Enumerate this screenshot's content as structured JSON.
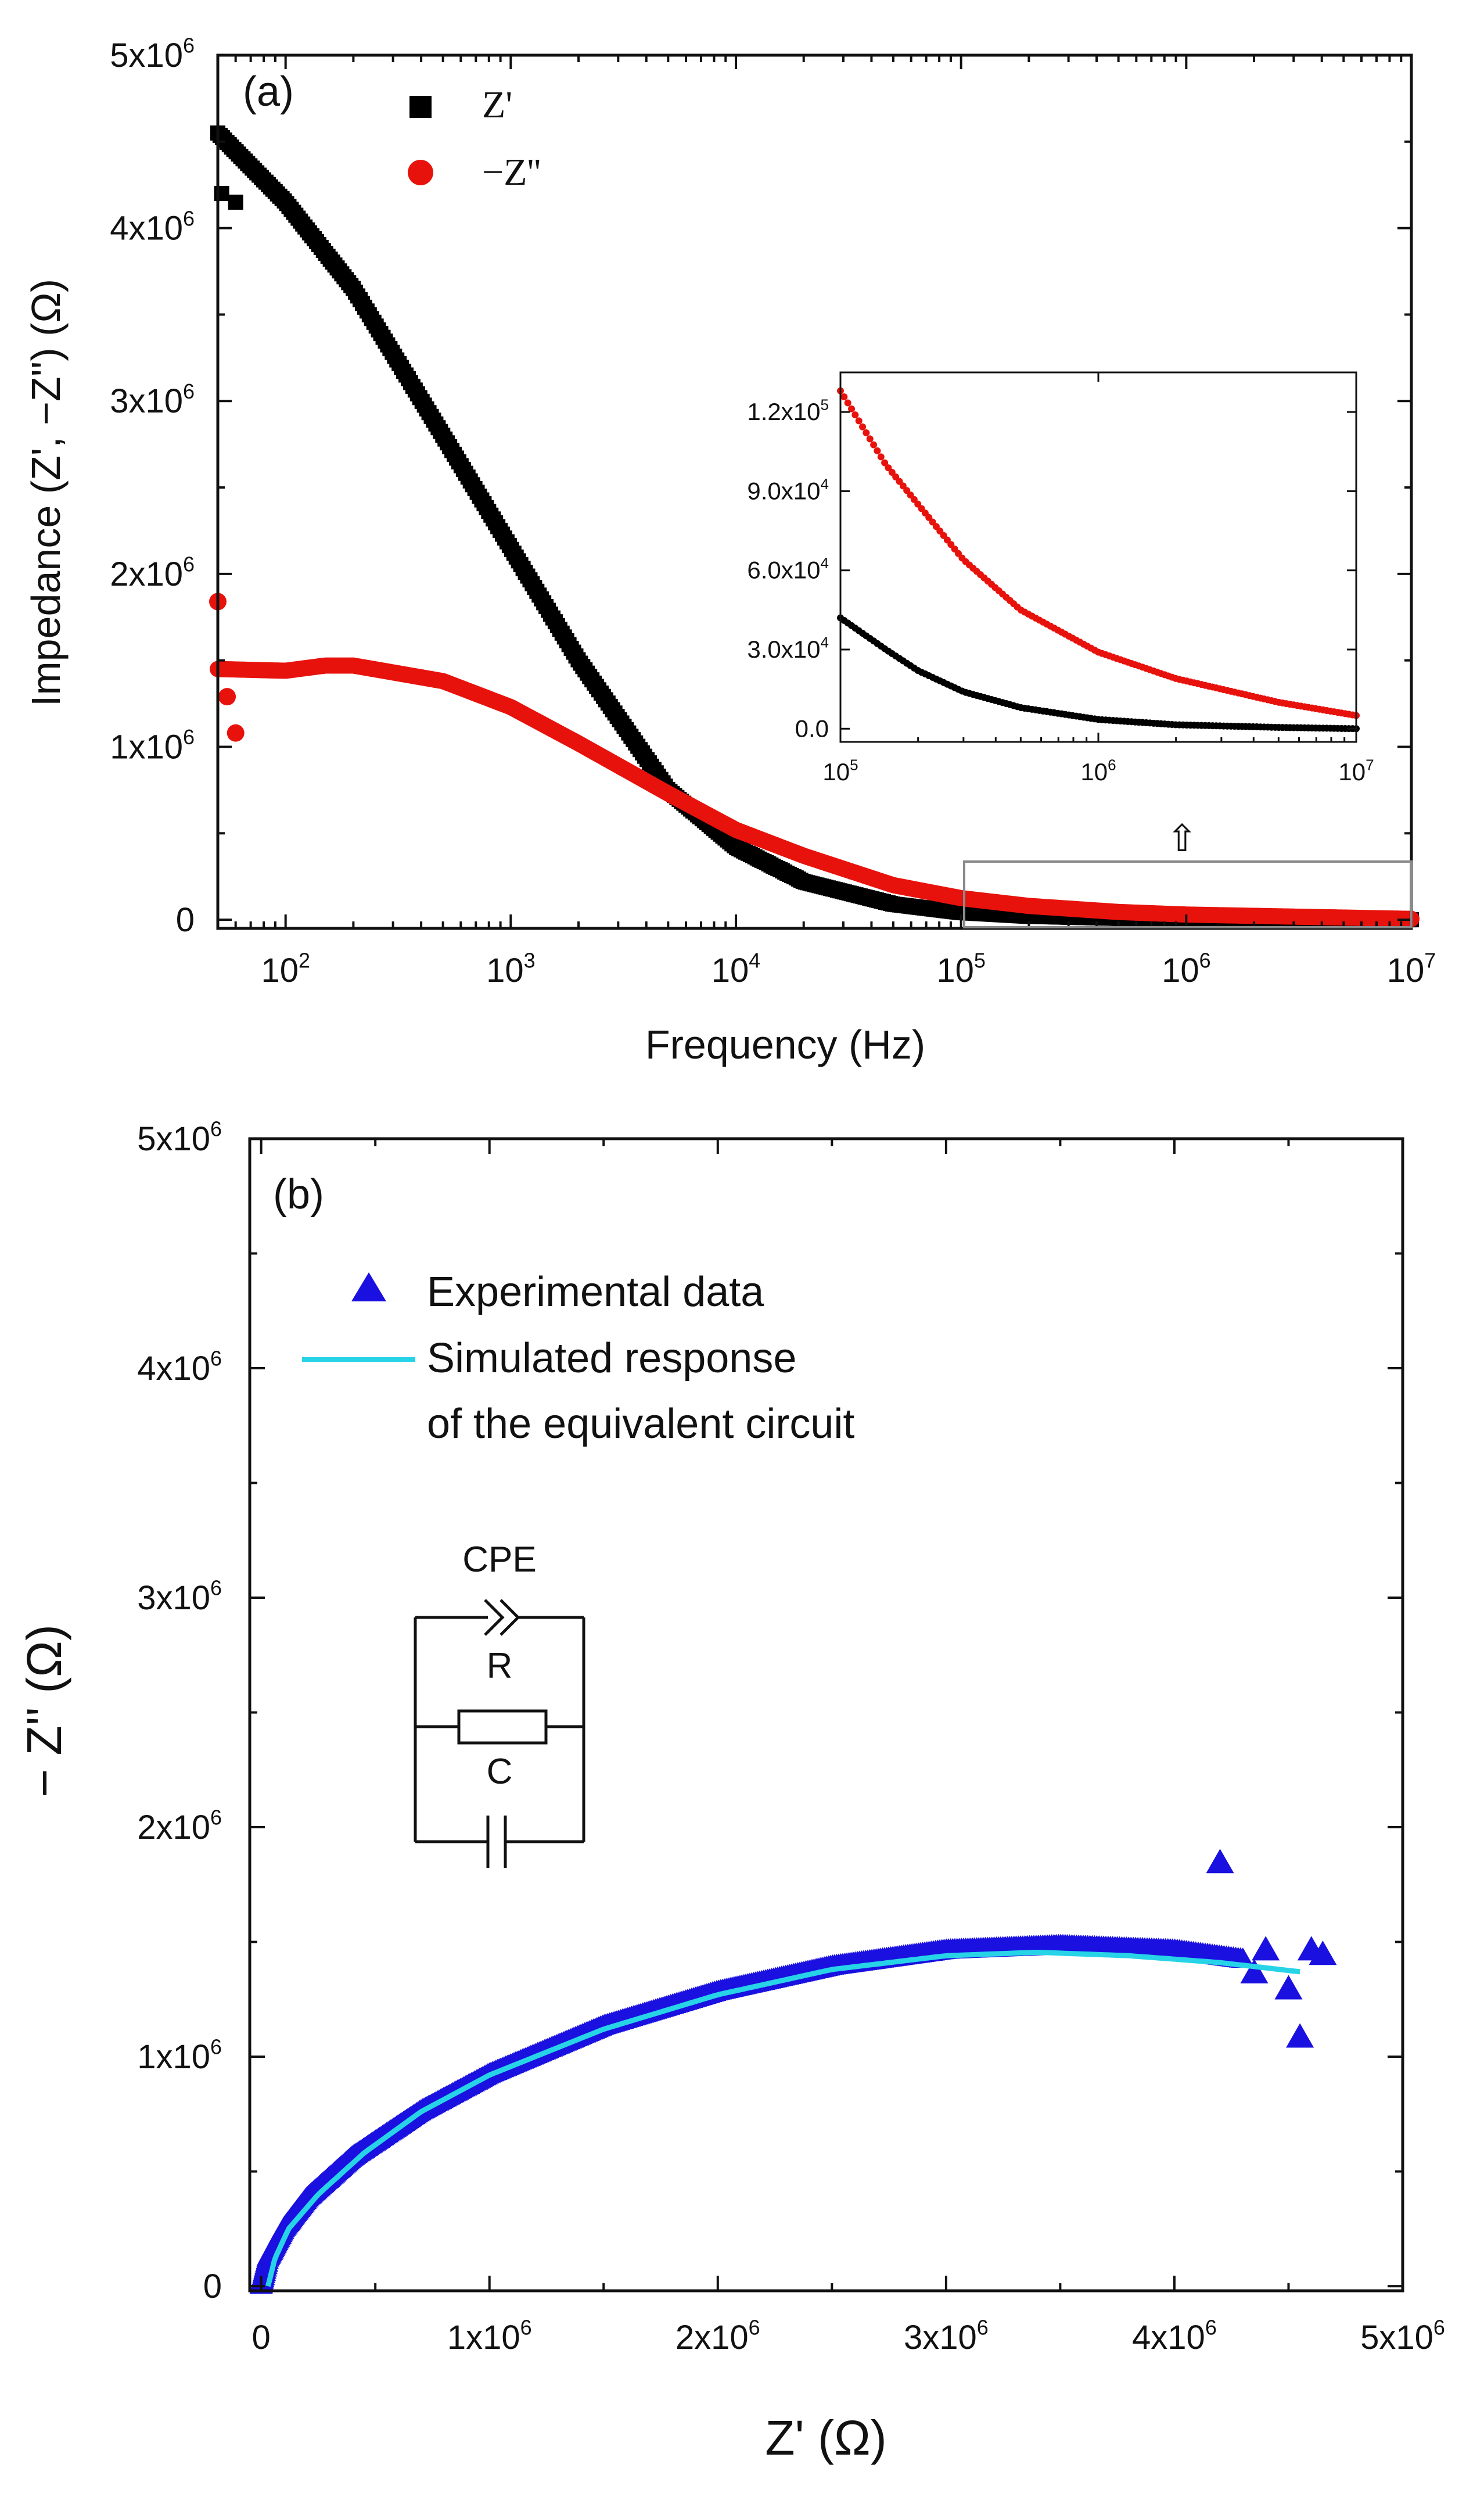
{
  "chart_data": [
    {
      "panel": "a",
      "panel_label": "(a)",
      "type": "scatter",
      "title": "",
      "xlabel": "Frequency (Hz)",
      "ylabel": "Impedance (Z', −Z'') (Ω)",
      "xscale": "log",
      "xlim": [
        50,
        10000000
      ],
      "ylim": [
        -50000,
        5000000
      ],
      "xticks": [
        {
          "value": 100,
          "base": "10",
          "exp": "2"
        },
        {
          "value": 1000,
          "base": "10",
          "exp": "3"
        },
        {
          "value": 10000,
          "base": "10",
          "exp": "4"
        },
        {
          "value": 100000,
          "base": "10",
          "exp": "5"
        },
        {
          "value": 1000000,
          "base": "10",
          "exp": "6"
        },
        {
          "value": 10000000,
          "base": "10",
          "exp": "7"
        }
      ],
      "yticks": [
        {
          "value": 0,
          "mant": "0",
          "exp": ""
        },
        {
          "value": 1000000,
          "mant": "1x10",
          "exp": "6"
        },
        {
          "value": 2000000,
          "mant": "2x10",
          "exp": "6"
        },
        {
          "value": 3000000,
          "mant": "3x10",
          "exp": "6"
        },
        {
          "value": 4000000,
          "mant": "4x10",
          "exp": "6"
        },
        {
          "value": 5000000,
          "mant": "5x10",
          "exp": "6"
        }
      ],
      "legend_position": "top-left",
      "series": [
        {
          "name": "Z'",
          "color": "#000000",
          "marker": "square",
          "x": [
            50,
            100,
            200,
            500,
            1000,
            2000,
            5000,
            10000,
            20000,
            50000,
            100000,
            200000,
            500000,
            1000000,
            10000000
          ],
          "y": [
            4550000,
            4150000,
            3650000,
            2800000,
            2150000,
            1500000,
            750000,
            420000,
            220000,
            90000,
            42000,
            20000,
            8000,
            3000,
            0
          ]
        },
        {
          "name": "−Z''",
          "color": "#e8120c",
          "marker": "circle",
          "x": [
            50,
            100,
            150,
            200,
            500,
            1000,
            2000,
            5000,
            10000,
            20000,
            50000,
            100000,
            200000,
            500000,
            1000000,
            10000000
          ],
          "y": [
            1450000,
            1440000,
            1470000,
            1470000,
            1380000,
            1230000,
            1020000,
            730000,
            520000,
            370000,
            200000,
            125000,
            80000,
            45000,
            30000,
            5000
          ]
        }
      ],
      "outliers": {
        "Z'": {
          "x": [
            52,
            60
          ],
          "y": [
            4200000,
            4150000
          ]
        },
        "−Z''": {
          "x": [
            50,
            55,
            60
          ],
          "y": [
            1840000,
            1290000,
            1080000
          ]
        }
      },
      "zoom_region": {
        "x": [
          100000,
          10000000
        ],
        "y": [
          -30000,
          300000
        ]
      },
      "zoom_arrow": "⇧",
      "inset": {
        "xscale": "log",
        "xlim": [
          100000,
          10000000
        ],
        "ylim": [
          -5000,
          135000
        ],
        "xticks": [
          {
            "value": 100000,
            "base": "10",
            "exp": "5"
          },
          {
            "value": 1000000,
            "base": "10",
            "exp": "6"
          },
          {
            "value": 10000000,
            "base": "10",
            "exp": "7"
          }
        ],
        "yticks": [
          {
            "value": 0,
            "mant": "0.0",
            "exp": ""
          },
          {
            "value": 30000,
            "mant": "3.0x10",
            "exp": "4"
          },
          {
            "value": 60000,
            "mant": "6.0x10",
            "exp": "4"
          },
          {
            "value": 90000,
            "mant": "9.0x10",
            "exp": "4"
          },
          {
            "value": 120000,
            "mant": "1.2x10",
            "exp": "5"
          }
        ],
        "series": [
          {
            "name": "Z'",
            "color": "#000000",
            "x": [
              100000,
              150000,
              200000,
              300000,
              500000,
              1000000,
              2000000,
              5000000,
              10000000
            ],
            "y": [
              42000,
              30000,
              22000,
              14000,
              8000,
              3500,
              1500,
              500,
              0
            ]
          },
          {
            "name": "−Z''",
            "color": "#e8120c",
            "x": [
              100000,
              150000,
              200000,
              300000,
              500000,
              1000000,
              2000000,
              5000000,
              10000000
            ],
            "y": [
              128000,
              100000,
              85000,
              64000,
              45000,
              29000,
              19000,
              10000,
              5000
            ]
          }
        ]
      }
    },
    {
      "panel": "b",
      "panel_label": "(b)",
      "type": "scatter",
      "title": "",
      "xlabel": "Z' (Ω)",
      "ylabel": "− Z'' (Ω)",
      "xlim": [
        -50000,
        5000000
      ],
      "ylim": [
        -20000,
        5000000
      ],
      "xticks": [
        {
          "value": 0,
          "mant": "0",
          "exp": ""
        },
        {
          "value": 1000000,
          "mant": "1x10",
          "exp": "6"
        },
        {
          "value": 2000000,
          "mant": "2x10",
          "exp": "6"
        },
        {
          "value": 3000000,
          "mant": "3x10",
          "exp": "6"
        },
        {
          "value": 4000000,
          "mant": "4x10",
          "exp": "6"
        },
        {
          "value": 5000000,
          "mant": "5x10",
          "exp": "6"
        }
      ],
      "yticks": [
        {
          "value": 0,
          "mant": "0",
          "exp": ""
        },
        {
          "value": 1000000,
          "mant": "1x10",
          "exp": "6"
        },
        {
          "value": 2000000,
          "mant": "2x10",
          "exp": "6"
        },
        {
          "value": 3000000,
          "mant": "3x10",
          "exp": "6"
        },
        {
          "value": 4000000,
          "mant": "4x10",
          "exp": "6"
        },
        {
          "value": 5000000,
          "mant": "5x10",
          "exp": "6"
        }
      ],
      "legend_position": "top-left",
      "series": [
        {
          "name": "Experimental data",
          "color": "#1a10e0",
          "marker": "triangle",
          "x": [
            0,
            30000,
            100000,
            200000,
            400000,
            700000,
            1000000,
            1500000,
            2000000,
            2500000,
            3000000,
            3500000,
            4000000,
            4300000
          ],
          "y": [
            0,
            120000,
            250000,
            380000,
            560000,
            760000,
            920000,
            1130000,
            1280000,
            1390000,
            1460000,
            1480000,
            1460000,
            1420000
          ]
        },
        {
          "name": "Simulated response of the equivalent circuit",
          "color": "#27d3e6",
          "marker": "line",
          "x": [
            30000,
            60000,
            120000,
            250000,
            450000,
            700000,
            1000000,
            1500000,
            2000000,
            2500000,
            3000000,
            3400000,
            3800000,
            4200000,
            4550000
          ],
          "y": [
            0,
            120000,
            250000,
            400000,
            580000,
            760000,
            920000,
            1120000,
            1270000,
            1380000,
            1440000,
            1455000,
            1440000,
            1410000,
            1370000
          ]
        }
      ],
      "outliers": {
        "x": [
          4200000,
          4400000,
          4600000,
          4650000,
          4500000,
          4350000,
          4550000
        ],
        "y": [
          1840000,
          1460000,
          1460000,
          1440000,
          1290000,
          1360000,
          1080000
        ]
      },
      "legend": {
        "experimental": "Experimental data",
        "simulated_line1": "Simulated response",
        "simulated_line2": "of the equivalent circuit"
      },
      "circuit": {
        "cpe_label": "CPE",
        "r_label": "R",
        "c_label": "C"
      }
    }
  ]
}
